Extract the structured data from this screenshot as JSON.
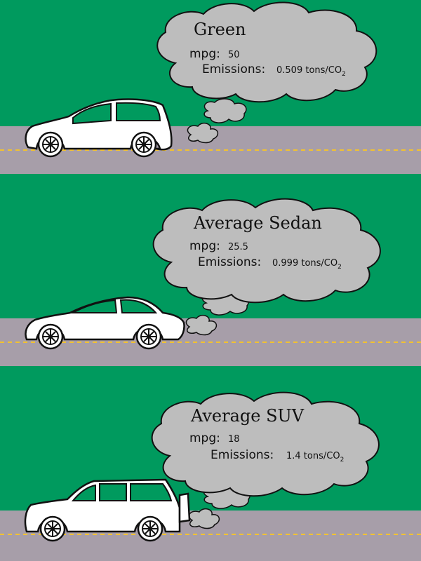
{
  "colors": {
    "grass": "#009a5e",
    "road": "#a79ea9",
    "lane_line": "#f2c230",
    "cloud": "#bdbdbd",
    "car": "#ffffff",
    "window": "#009a5e",
    "outline": "#111111"
  },
  "panels": [
    {
      "title": "Green",
      "mpg_label": "mpg:",
      "mpg_value": "50",
      "emissions_label": "Emissions:",
      "emissions_value": "0.509 tons/CO",
      "emissions_sub": "2",
      "vehicle": "hatchback-icon"
    },
    {
      "title": "Average Sedan",
      "mpg_label": "mpg:",
      "mpg_value": "25.5",
      "emissions_label": "Emissions:",
      "emissions_value": "0.999 tons/CO",
      "emissions_sub": "2",
      "vehicle": "sedan-icon"
    },
    {
      "title": "Average SUV",
      "mpg_label": "mpg:",
      "mpg_value": "18",
      "emissions_label": "Emissions:",
      "emissions_value": "1.4 tons/CO",
      "emissions_sub": "2",
      "vehicle": "suv-icon"
    }
  ]
}
